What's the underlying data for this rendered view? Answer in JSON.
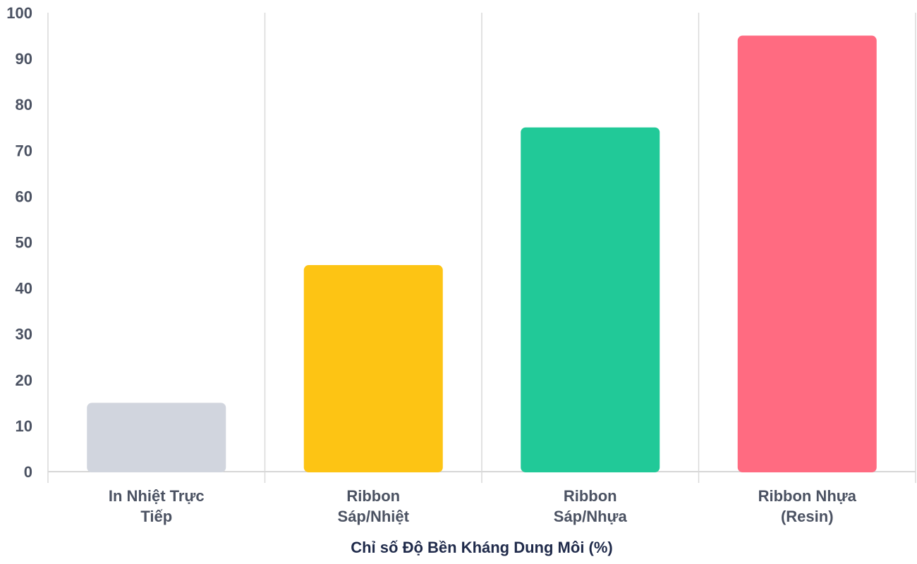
{
  "chart_data": {
    "type": "bar",
    "categories": [
      [
        "In Nhiệt Trực",
        "Tiếp"
      ],
      [
        "Ribbon",
        "Sáp/Nhiệt"
      ],
      [
        "Ribbon",
        "Sáp/Nhựa"
      ],
      [
        "Ribbon Nhựa",
        "(Resin)"
      ]
    ],
    "values": [
      15,
      45,
      75,
      95
    ],
    "colors": [
      "#d1d5de",
      "#fdc414",
      "#21c998",
      "#ff6b81"
    ],
    "xlabel": "Chỉ số Độ Bền Kháng Dung Môi (%)",
    "ylabel": "",
    "ylim": [
      0,
      100
    ],
    "yticks": [
      0,
      10,
      20,
      30,
      40,
      50,
      60,
      70,
      80,
      90,
      100
    ],
    "grid": "vertical separators between categories"
  }
}
